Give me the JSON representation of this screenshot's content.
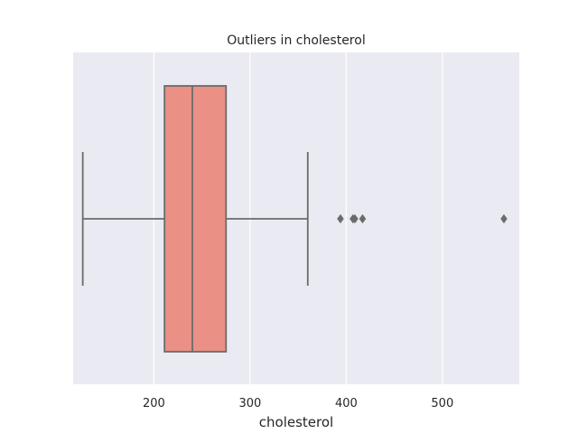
{
  "chart_data": {
    "type": "box",
    "orientation": "horizontal",
    "title": "Outliers in cholesterol",
    "xlabel": "cholesterol",
    "ylabel": "",
    "xlim": [
      116,
      580
    ],
    "xticks": [
      200,
      300,
      400,
      500
    ],
    "xtick_labels": [
      "200",
      "300",
      "400",
      "500"
    ],
    "grid": true,
    "box": {
      "whisker_low": 126,
      "q1": 211,
      "median": 240,
      "q3": 275,
      "whisker_high": 360
    },
    "outliers": [
      394,
      407,
      409,
      417,
      564
    ],
    "colors": {
      "plot_background": "#eaeaf2",
      "grid": "#ffffff",
      "box_fill": "#ea9085",
      "box_edge": "#6b6b6b"
    }
  }
}
